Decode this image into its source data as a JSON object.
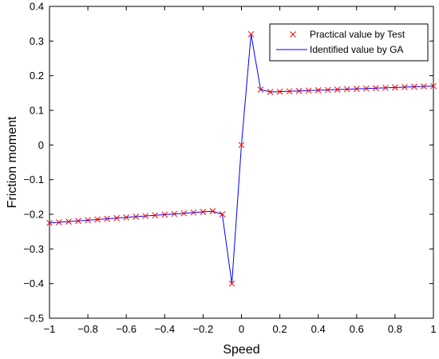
{
  "chart_data": {
    "type": "line",
    "title": "",
    "xlabel": "Speed",
    "ylabel": "Friction moment",
    "xlim": [
      -1,
      1
    ],
    "ylim": [
      -0.5,
      0.4
    ],
    "xticks": [
      -1,
      -0.8,
      -0.6,
      -0.4,
      -0.2,
      0,
      0.2,
      0.4,
      0.6,
      0.8,
      1
    ],
    "xtick_labels": [
      "−1",
      "−0.8",
      "−0.6",
      "−0.4",
      "−0.2",
      "0",
      "0.2",
      "0.4",
      "0.6",
      "0.8",
      "1"
    ],
    "yticks": [
      -0.5,
      -0.4,
      -0.3,
      -0.2,
      -0.1,
      0,
      0.1,
      0.2,
      0.3,
      0.4
    ],
    "ytick_labels": [
      "−0.5",
      "−0.4",
      "−0.3",
      "−0.2",
      "−0.1",
      "0",
      "0.1",
      "0.2",
      "0.3",
      "0.4"
    ],
    "grid": false,
    "legend_position": "top-right",
    "series": [
      {
        "name": "Practical value by Test",
        "style": "marker-x",
        "color": "#ff0000",
        "x": [
          -1,
          -0.95,
          -0.9,
          -0.85,
          -0.8,
          -0.75,
          -0.7,
          -0.65,
          -0.6,
          -0.55,
          -0.5,
          -0.45,
          -0.4,
          -0.35,
          -0.3,
          -0.25,
          -0.2,
          -0.15,
          -0.1,
          -0.05,
          0,
          0.05,
          0.1,
          0.15,
          0.2,
          0.25,
          0.3,
          0.35,
          0.4,
          0.45,
          0.5,
          0.55,
          0.6,
          0.65,
          0.7,
          0.75,
          0.8,
          0.85,
          0.9,
          0.95,
          1
        ],
        "y": [
          -0.225,
          -0.223,
          -0.221,
          -0.219,
          -0.217,
          -0.215,
          -0.213,
          -0.211,
          -0.209,
          -0.207,
          -0.205,
          -0.203,
          -0.201,
          -0.199,
          -0.197,
          -0.195,
          -0.193,
          -0.191,
          -0.2,
          -0.4,
          0.0,
          0.32,
          0.16,
          0.153,
          0.154,
          0.155,
          0.156,
          0.157,
          0.158,
          0.159,
          0.16,
          0.161,
          0.162,
          0.163,
          0.164,
          0.165,
          0.166,
          0.167,
          0.168,
          0.169,
          0.17
        ]
      },
      {
        "name": "Identified value by GA",
        "style": "line",
        "color": "#0000ff",
        "x": [
          -1,
          -0.95,
          -0.9,
          -0.85,
          -0.8,
          -0.75,
          -0.7,
          -0.65,
          -0.6,
          -0.55,
          -0.5,
          -0.45,
          -0.4,
          -0.35,
          -0.3,
          -0.25,
          -0.2,
          -0.15,
          -0.1,
          -0.05,
          0,
          0.05,
          0.1,
          0.15,
          0.2,
          0.25,
          0.3,
          0.35,
          0.4,
          0.45,
          0.5,
          0.55,
          0.6,
          0.65,
          0.7,
          0.75,
          0.8,
          0.85,
          0.9,
          0.95,
          1
        ],
        "y": [
          -0.225,
          -0.223,
          -0.221,
          -0.219,
          -0.217,
          -0.215,
          -0.213,
          -0.211,
          -0.209,
          -0.207,
          -0.205,
          -0.203,
          -0.201,
          -0.199,
          -0.197,
          -0.195,
          -0.193,
          -0.191,
          -0.2,
          -0.4,
          0.0,
          0.32,
          0.16,
          0.153,
          0.154,
          0.155,
          0.156,
          0.157,
          0.158,
          0.159,
          0.16,
          0.161,
          0.162,
          0.163,
          0.164,
          0.165,
          0.166,
          0.167,
          0.168,
          0.169,
          0.17
        ]
      }
    ]
  }
}
